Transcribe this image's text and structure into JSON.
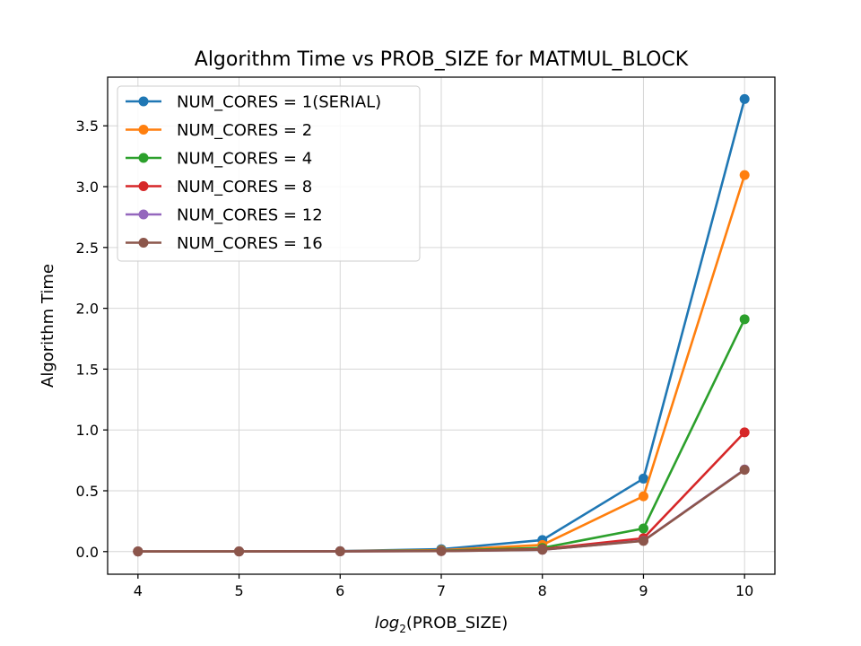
{
  "chart_data": {
    "type": "line",
    "title": "Algorithm Time vs PROB_SIZE for MATMUL_BLOCK",
    "xlabel_prefix": "log",
    "xlabel_sub": "2",
    "xlabel_suffix": "(PROB_SIZE)",
    "ylabel": "Algorithm Time",
    "xlim": [
      3.7,
      10.3
    ],
    "ylim": [
      -0.186,
      3.9
    ],
    "xticks": [
      4,
      5,
      6,
      7,
      8,
      9,
      10
    ],
    "yticks": [
      0.0,
      0.5,
      1.0,
      1.5,
      2.0,
      2.5,
      3.0,
      3.5
    ],
    "grid": true,
    "legend_position": "top-left",
    "x": [
      4,
      5,
      6,
      7,
      8,
      9,
      10
    ],
    "series": [
      {
        "name": "NUM_CORES = 1(SERIAL)",
        "color": "#1f77b4",
        "values": [
          0.001,
          0.002,
          0.004,
          0.02,
          0.095,
          0.6,
          3.72
        ]
      },
      {
        "name": "NUM_CORES = 2",
        "color": "#ff7f0e",
        "values": [
          0.001,
          0.002,
          0.003,
          0.012,
          0.055,
          0.455,
          3.095
        ]
      },
      {
        "name": "NUM_CORES = 4",
        "color": "#2ca02c",
        "values": [
          0.001,
          0.001,
          0.002,
          0.008,
          0.03,
          0.19,
          1.91
        ]
      },
      {
        "name": "NUM_CORES = 8",
        "color": "#d62728",
        "values": [
          0.001,
          0.001,
          0.002,
          0.005,
          0.02,
          0.11,
          0.98
        ]
      },
      {
        "name": "NUM_CORES = 12",
        "color": "#9467bd",
        "values": [
          0.001,
          0.001,
          0.002,
          0.004,
          0.015,
          0.09,
          0.675
        ]
      },
      {
        "name": "NUM_CORES = 16",
        "color": "#8c564b",
        "values": [
          0.001,
          0.001,
          0.002,
          0.004,
          0.015,
          0.088,
          0.672
        ]
      }
    ]
  }
}
